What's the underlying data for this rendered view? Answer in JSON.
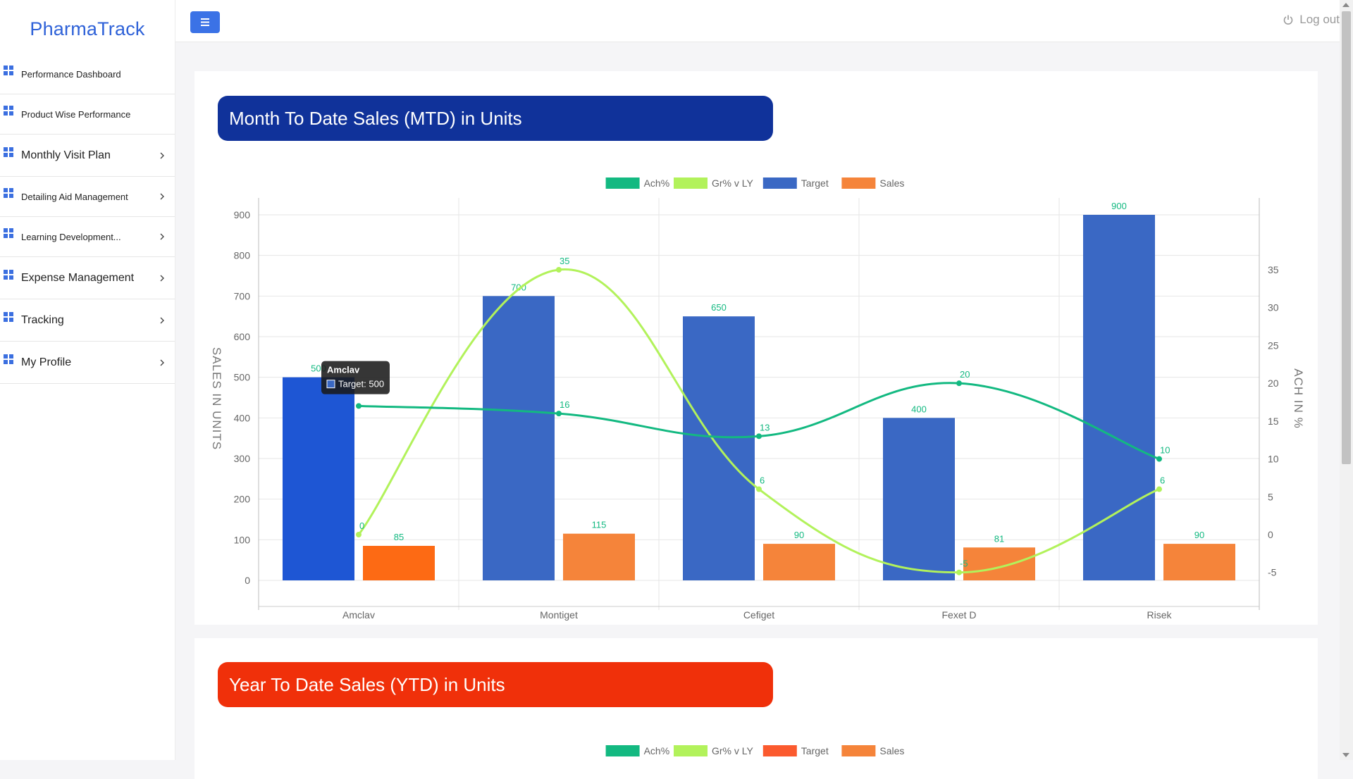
{
  "app": {
    "brand": "PharmaTrack",
    "logout_label": "Log out"
  },
  "sidebar": {
    "items": [
      {
        "label": "Performance Dashboard",
        "has_submenu": false
      },
      {
        "label": "Product Wise Performance",
        "has_submenu": false
      },
      {
        "label": "Monthly Visit Plan",
        "has_submenu": true
      },
      {
        "label": "Detailing Aid Management",
        "has_submenu": true
      },
      {
        "label": "Learning Development...",
        "has_submenu": true
      },
      {
        "label": "Expense Management",
        "has_submenu": true
      },
      {
        "label": "Tracking",
        "has_submenu": true
      },
      {
        "label": "My Profile",
        "has_submenu": true
      }
    ]
  },
  "sections": {
    "mtd_title": "Month To Date Sales (MTD) in Units",
    "ytd_title": "Year To Date Sales (YTD) in Units"
  },
  "colors": {
    "ach": "#13b981",
    "growth": "#b2f25b",
    "target": "#3a68c4",
    "sales": "#f5843a",
    "ytd_target": "#fb5a2e"
  },
  "chart_data": [
    {
      "type": "bar",
      "categories": [
        "Amclav",
        "Montiget",
        "Cefiget",
        "Fexet D",
        "Risek"
      ],
      "series": [
        {
          "name": "Target",
          "kind": "bar",
          "axis": "left",
          "values": [
            500,
            700,
            650,
            400,
            900
          ]
        },
        {
          "name": "Sales",
          "kind": "bar",
          "axis": "left",
          "values": [
            85,
            115,
            90,
            81,
            90
          ]
        },
        {
          "name": "Ach%",
          "kind": "line",
          "axis": "right",
          "values": [
            17,
            16,
            13,
            20,
            10
          ]
        },
        {
          "name": "Gr% v LY",
          "kind": "line",
          "axis": "right",
          "values": [
            0,
            35,
            6,
            -5,
            6
          ]
        }
      ],
      "legend_order": [
        "Ach%",
        "Gr% v LY",
        "Target",
        "Sales"
      ],
      "point_labels": {
        "Ach%": [
          "",
          "16",
          "13",
          "20",
          "10"
        ],
        "Gr% v LY": [
          "0",
          "35",
          "6",
          "-5",
          "6"
        ]
      },
      "ylabel": "SALES IN UNITS",
      "y2label": "ACH IN %",
      "ylim": [
        0,
        950
      ],
      "yticks": [
        0,
        100,
        200,
        300,
        400,
        500,
        600,
        700,
        800,
        900
      ],
      "y2lim": [
        -5,
        37
      ],
      "y2ticks": [
        -5,
        0,
        5,
        10,
        15,
        20,
        25,
        30,
        35
      ],
      "legend_position": "top",
      "grid": true,
      "tooltip": {
        "title": "Amclav",
        "text": "Target: 500",
        "category": "Amclav"
      }
    },
    {
      "type": "bar",
      "legend_order": [
        "Ach%",
        "Gr% v LY",
        "Target",
        "Sales"
      ]
    }
  ]
}
